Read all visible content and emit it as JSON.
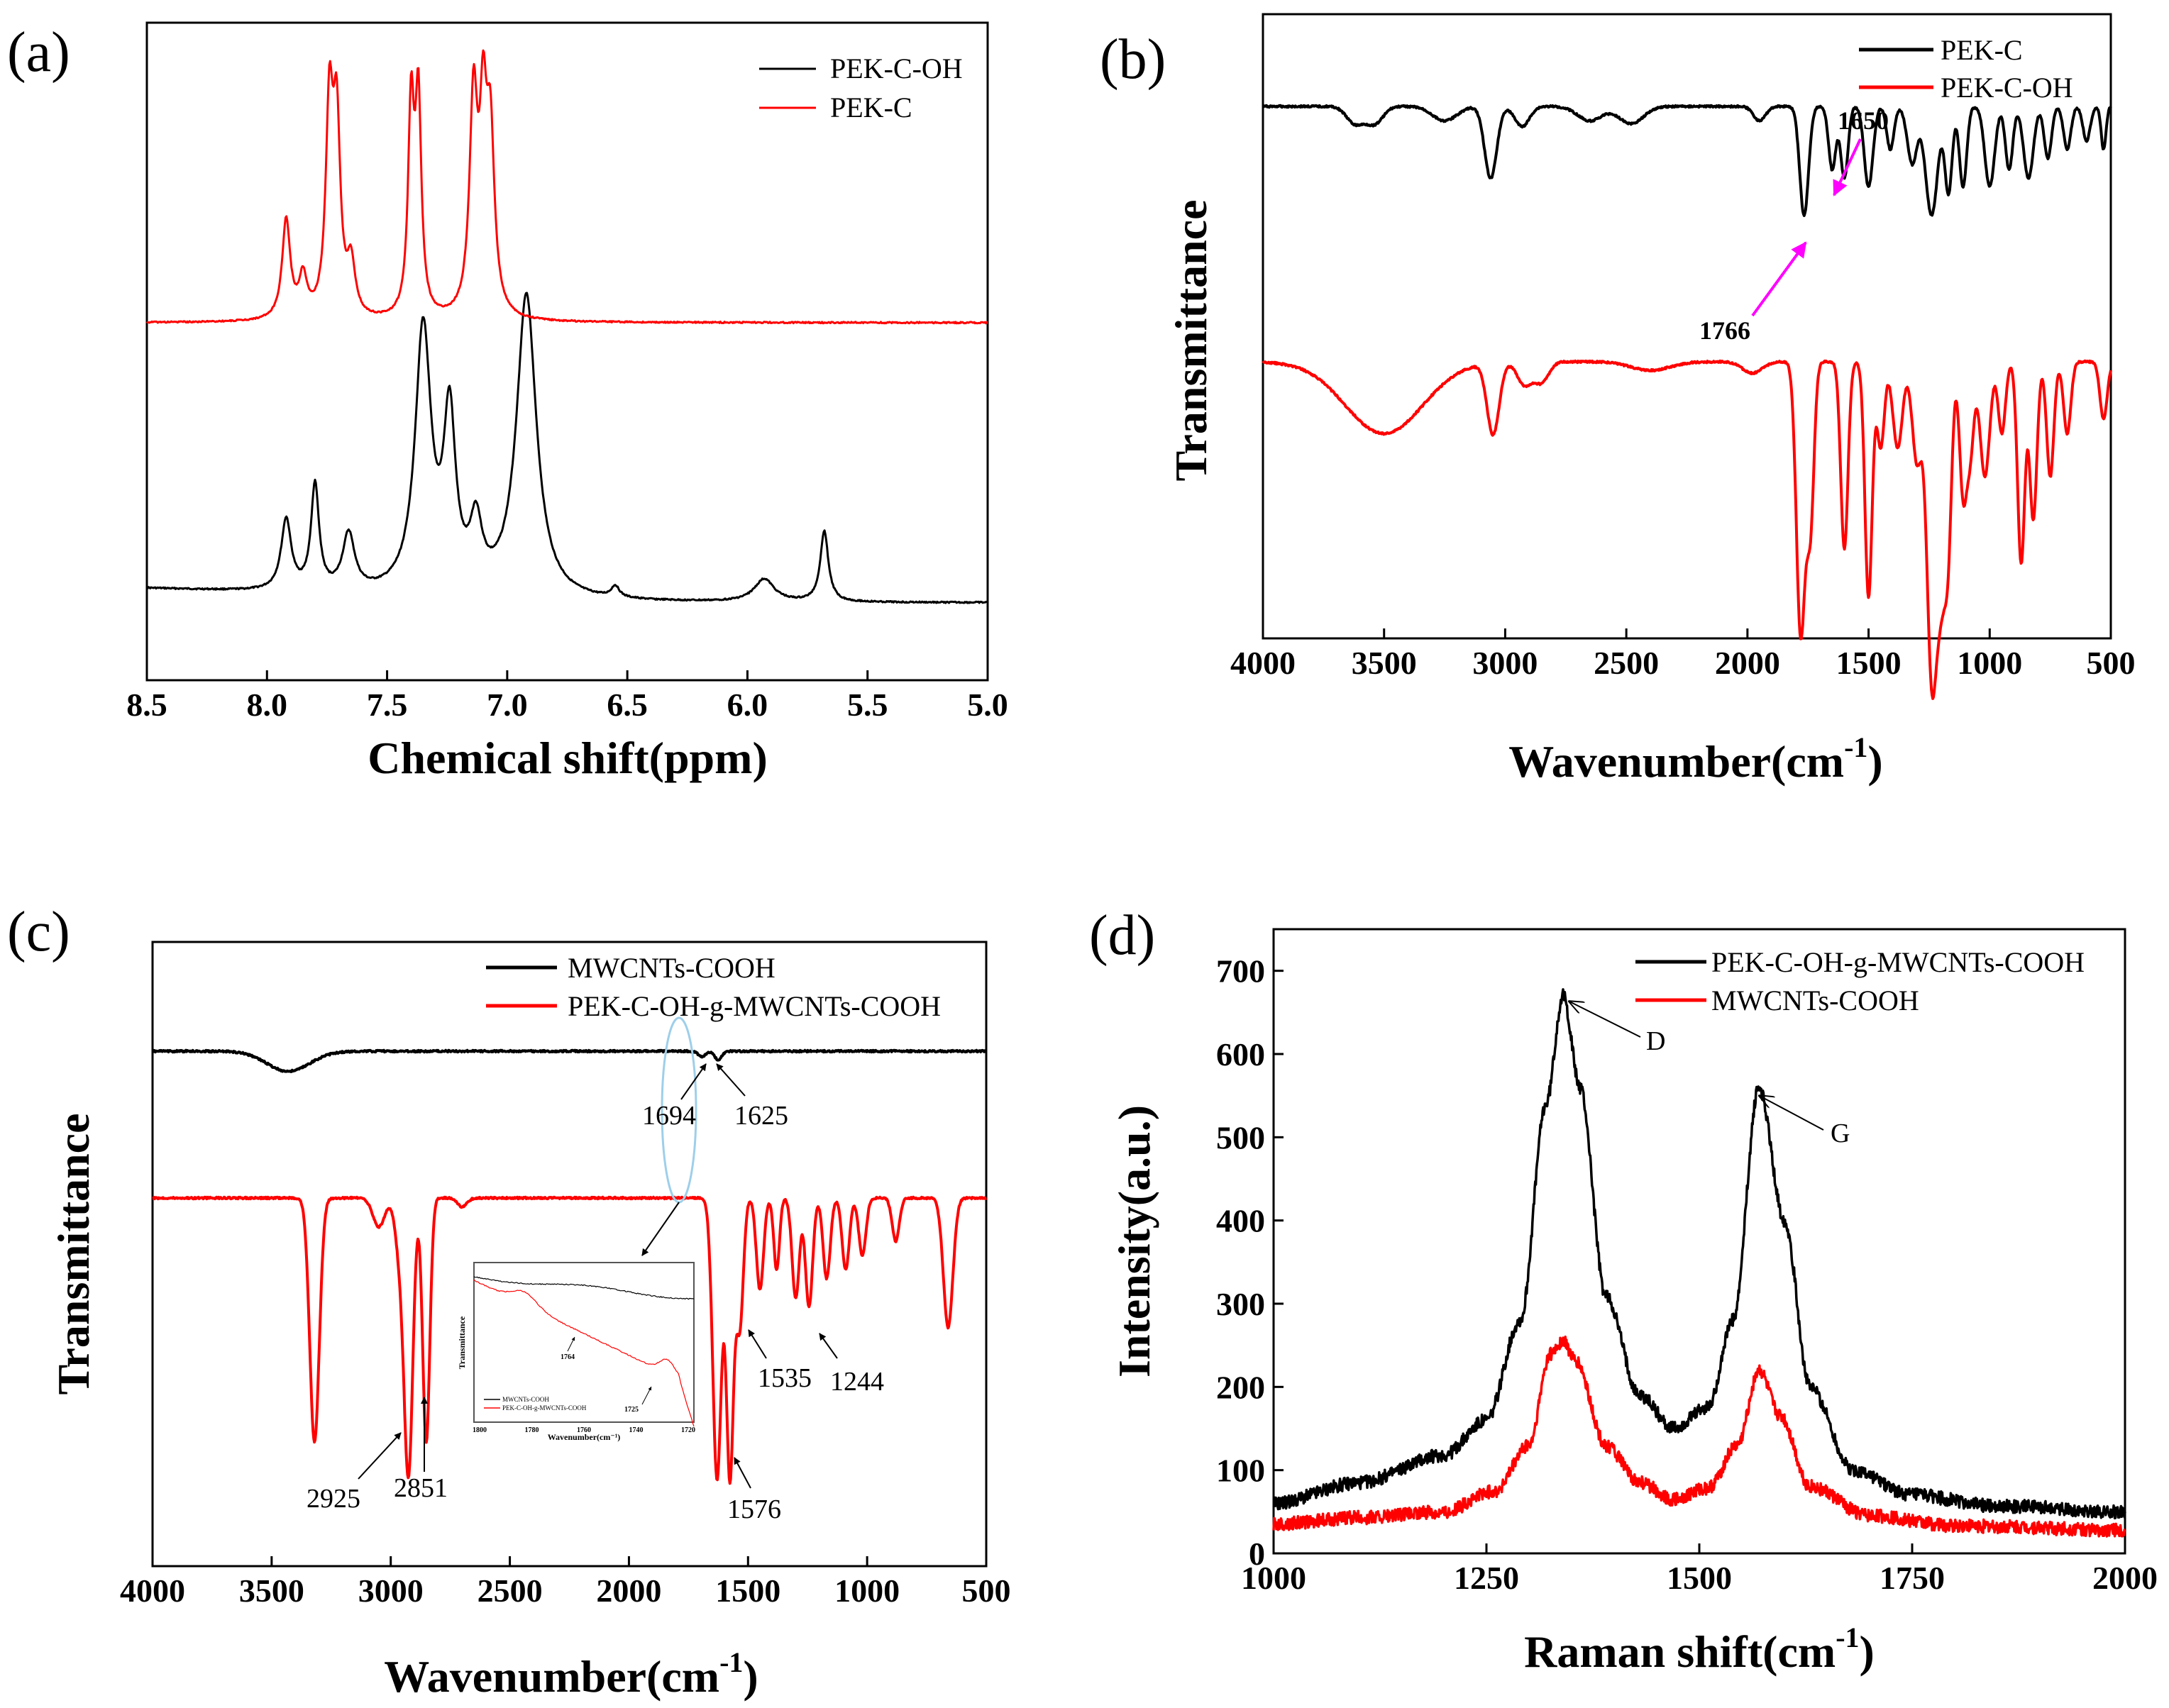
{
  "colors": {
    "black": "#000000",
    "red": "#ff0000",
    "magenta": "#ff00ff",
    "cyan": "#9ecfea"
  },
  "chart_data": [
    {
      "panel": "(a)",
      "type": "line",
      "xlabel": "Chemical shift(ppm)",
      "ylabel": "",
      "xlim": [
        8.5,
        5.0
      ],
      "xticks": [
        "8.5",
        "8.0",
        "7.5",
        "7.0",
        "6.5",
        "6.0",
        "5.5",
        "5.0"
      ],
      "legend": "top-right",
      "series": [
        {
          "name": "PEK-C-OH",
          "color": "black",
          "baseline": 0.0,
          "drift": 0.05,
          "peaks": [
            [
              7.92,
              0.25,
              0.025
            ],
            [
              7.8,
              0.37,
              0.02
            ],
            [
              7.66,
              0.2,
              0.03
            ],
            [
              7.35,
              0.93,
              0.04
            ],
            [
              7.24,
              0.6,
              0.03
            ],
            [
              7.13,
              0.22,
              0.03
            ],
            [
              6.92,
              1.07,
              0.05
            ],
            [
              6.55,
              0.04,
              0.02
            ],
            [
              5.93,
              0.08,
              0.05
            ],
            [
              5.68,
              0.25,
              0.02
            ]
          ]
        },
        {
          "name": "PEK-C",
          "color": "red",
          "baseline": 1.0,
          "drift": 0.0,
          "peaks": [
            [
              7.92,
              0.35,
              0.02
            ],
            [
              7.85,
              0.14,
              0.02
            ],
            [
              7.74,
              0.72,
              0.018
            ],
            [
              7.71,
              0.65,
              0.018
            ],
            [
              7.65,
              0.18,
              0.02
            ],
            [
              7.4,
              0.72,
              0.015
            ],
            [
              7.37,
              0.74,
              0.015
            ],
            [
              7.14,
              0.75,
              0.02
            ],
            [
              7.1,
              0.62,
              0.018
            ],
            [
              7.07,
              0.6,
              0.02
            ]
          ]
        }
      ]
    },
    {
      "panel": "(b)",
      "type": "line",
      "xlabel": "Wavenumber(cm⁻¹)",
      "ylabel": "Transmittance",
      "xlim": [
        4000,
        500
      ],
      "xticks": [
        "4000",
        "3500",
        "3000",
        "2500",
        "2000",
        "1500",
        "1000",
        "500"
      ],
      "legend": "top-right",
      "annotations": [
        "1650",
        "1766"
      ],
      "series": [
        {
          "name": "PEK-C",
          "color": "black",
          "baseline": 0.9,
          "bands": [
            [
              3620,
              0.06,
              35
            ],
            [
              3540,
              0.06,
              35
            ],
            [
              3250,
              0.05,
              50
            ],
            [
              3060,
              0.25,
              25
            ],
            [
              2930,
              0.07,
              30
            ],
            [
              2650,
              0.05,
              50
            ],
            [
              2480,
              0.06,
              50
            ],
            [
              1950,
              0.05,
              25
            ],
            [
              1766,
              0.38,
              18
            ],
            [
              1650,
              0.22,
              15
            ],
            [
              1600,
              0.25,
              15
            ],
            [
              1500,
              0.28,
              18
            ],
            [
              1410,
              0.15,
              15
            ],
            [
              1320,
              0.2,
              20
            ],
            [
              1240,
              0.38,
              25
            ],
            [
              1170,
              0.3,
              15
            ],
            [
              1110,
              0.28,
              15
            ],
            [
              1000,
              0.28,
              20
            ],
            [
              920,
              0.22,
              15
            ],
            [
              840,
              0.25,
              20
            ],
            [
              760,
              0.18,
              15
            ],
            [
              680,
              0.15,
              15
            ],
            [
              600,
              0.12,
              15
            ],
            [
              530,
              0.15,
              10
            ]
          ]
        },
        {
          "name": "PEK-C-OH",
          "color": "red",
          "baseline": 0.5,
          "bands": [
            [
              3500,
              0.25,
              160
            ],
            [
              3050,
              0.25,
              25
            ],
            [
              2920,
              0.08,
              30
            ],
            [
              2850,
              0.07,
              30
            ],
            [
              2400,
              0.03,
              80
            ],
            [
              1980,
              0.04,
              40
            ],
            [
              1780,
              0.95,
              18
            ],
            [
              1740,
              0.55,
              15
            ],
            [
              1600,
              0.65,
              15
            ],
            [
              1500,
              0.82,
              15
            ],
            [
              1450,
              0.3,
              15
            ],
            [
              1380,
              0.3,
              20
            ],
            [
              1300,
              0.35,
              20
            ],
            [
              1240,
              1.05,
              20
            ],
            [
              1200,
              0.7,
              20
            ],
            [
              1170,
              0.5,
              15
            ],
            [
              1110,
              0.45,
              15
            ],
            [
              1080,
              0.3,
              15
            ],
            [
              1020,
              0.4,
              20
            ],
            [
              950,
              0.25,
              15
            ],
            [
              870,
              0.7,
              15
            ],
            [
              820,
              0.55,
              15
            ],
            [
              750,
              0.4,
              15
            ],
            [
              680,
              0.25,
              15
            ],
            [
              530,
              0.2,
              15
            ]
          ]
        }
      ]
    },
    {
      "panel": "(c)",
      "type": "line",
      "xlabel": "Wavenumber(cm⁻¹)",
      "ylabel": "Transmittance",
      "xlim": [
        4000,
        500
      ],
      "xticks": [
        "4000",
        "3500",
        "3000",
        "2500",
        "2000",
        "1500",
        "1000",
        "500"
      ],
      "legend": "top-right",
      "annotations": [
        "1694",
        "1625",
        "2925",
        "2851",
        "1535",
        "1244",
        "1576"
      ],
      "series": [
        {
          "name": "MWCNTs-COOH",
          "color": "black",
          "baseline": 0.92,
          "bands": [
            [
              3430,
              0.07,
              90
            ],
            [
              1694,
              0.02,
              15
            ],
            [
              1625,
              0.03,
              15
            ]
          ]
        },
        {
          "name": "PEK-C-OH-g-MWCNTs-COOH",
          "color": "red",
          "baseline": 0.69,
          "bands": [
            [
              3320,
              0.85,
              20
            ],
            [
              3050,
              0.1,
              25
            ],
            [
              2960,
              0.2,
              20
            ],
            [
              2925,
              0.93,
              18
            ],
            [
              2851,
              0.85,
              15
            ],
            [
              2700,
              0.03,
              20
            ],
            [
              1630,
              0.98,
              18
            ],
            [
              1576,
              0.97,
              15
            ],
            [
              1535,
              0.45,
              15
            ],
            [
              1450,
              0.32,
              15
            ],
            [
              1380,
              0.25,
              12
            ],
            [
              1300,
              0.35,
              15
            ],
            [
              1244,
              0.38,
              15
            ],
            [
              1170,
              0.28,
              15
            ],
            [
              1090,
              0.25,
              15
            ],
            [
              1020,
              0.2,
              15
            ],
            [
              880,
              0.15,
              15
            ],
            [
              660,
              0.45,
              20
            ]
          ]
        }
      ],
      "inset": {
        "ylabel": "Transmittance",
        "xlabel": "Wavenumber(cm⁻¹)",
        "xticks": [
          "1800",
          "1780",
          "1760",
          "1740",
          "1720"
        ],
        "annotations": [
          "1764",
          "1725"
        ],
        "legend": [
          "MWCNTs-COOH",
          "PEK-C-OH-g-MWCNTs-COOH"
        ]
      }
    },
    {
      "panel": "(d)",
      "type": "line",
      "xlabel": "Raman shift(cm⁻¹)",
      "ylabel": "Intensity(a.u.)",
      "xlim": [
        1000,
        2000
      ],
      "ylim": [
        0,
        750
      ],
      "xticks": [
        "1000",
        "1250",
        "1500",
        "1750",
        "2000"
      ],
      "yticks": [
        "0",
        "100",
        "200",
        "300",
        "400",
        "500",
        "600",
        "700"
      ],
      "legend": "top-right",
      "annotations": [
        "D",
        "G"
      ],
      "series": [
        {
          "name": "PEK-C-OH-g-MWCNTs-COOH",
          "color": "black",
          "points": [
            [
              1000,
              60
            ],
            [
              1100,
              85
            ],
            [
              1200,
              118
            ],
            [
              1250,
              160
            ],
            [
              1290,
              280
            ],
            [
              1320,
              540
            ],
            [
              1340,
              670
            ],
            [
              1360,
              560
            ],
            [
              1390,
              310
            ],
            [
              1430,
              190
            ],
            [
              1470,
              150
            ],
            [
              1510,
              175
            ],
            [
              1540,
              280
            ],
            [
              1570,
              560
            ],
            [
              1600,
              400
            ],
            [
              1630,
              200
            ],
            [
              1680,
              100
            ],
            [
              1750,
              70
            ],
            [
              1850,
              57
            ],
            [
              2000,
              50
            ]
          ]
        },
        {
          "name": "MWCNTs-COOH",
          "color": "red",
          "points": [
            [
              1000,
              35
            ],
            [
              1100,
              43
            ],
            [
              1200,
              50
            ],
            [
              1260,
              75
            ],
            [
              1300,
              130
            ],
            [
              1325,
              240
            ],
            [
              1340,
              255
            ],
            [
              1355,
              230
            ],
            [
              1390,
              130
            ],
            [
              1430,
              85
            ],
            [
              1470,
              65
            ],
            [
              1510,
              78
            ],
            [
              1545,
              130
            ],
            [
              1570,
              220
            ],
            [
              1595,
              165
            ],
            [
              1630,
              80
            ],
            [
              1700,
              45
            ],
            [
              1800,
              33
            ],
            [
              2000,
              28
            ]
          ]
        }
      ]
    }
  ],
  "labels": {
    "a": {
      "letter": "(a)",
      "xlabel": "Chemical shift(ppm)",
      "legend": [
        "PEK-C-OH",
        "PEK-C"
      ]
    },
    "b": {
      "letter": "(b)",
      "xlabel": "Wavenumber(cm",
      "xsup": "-1",
      "xclose": ")",
      "ylabel": "Transmittance",
      "legend": [
        "PEK-C",
        "PEK-C-OH"
      ],
      "ann": [
        "1650",
        "1766"
      ]
    },
    "c": {
      "letter": "(c)",
      "xlabel": "Wavenumber(cm",
      "xsup": "-1",
      "xclose": ")",
      "ylabel": "Transmittance",
      "legend": [
        "MWCNTs-COOH",
        "PEK-C-OH-g-MWCNTs-COOH"
      ],
      "ann": [
        "1694",
        "1625",
        "2925",
        "2851",
        "1535",
        "1244",
        "1576"
      ],
      "inset_ann": [
        "1764",
        "1725"
      ],
      "inset_ylabel": "Transmittance",
      "inset_xlabel": "Wavenumber(cm⁻¹)",
      "inset_legend": [
        "MWCNTs-COOH",
        "PEK-C-OH-g-MWCNTs-COOH"
      ]
    },
    "d": {
      "letter": "(d)",
      "xlabel": "Raman shift(cm",
      "xsup": "-1",
      "xclose": ")",
      "ylabel": "Intensity(a.u.)",
      "legend": [
        "PEK-C-OH-g-MWCNTs-COOH",
        "MWCNTs-COOH"
      ],
      "ann": [
        "D",
        "G"
      ]
    }
  }
}
